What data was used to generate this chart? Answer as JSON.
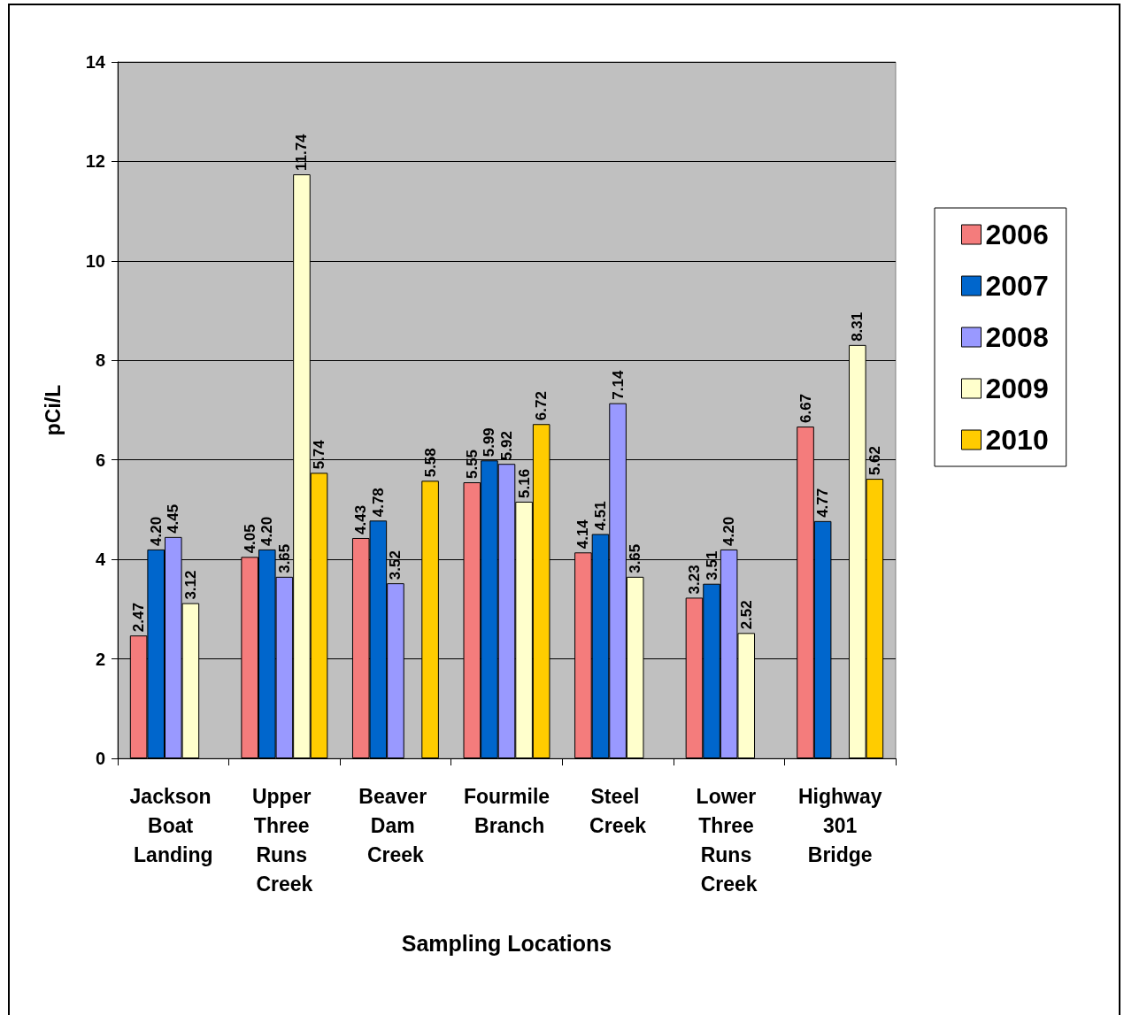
{
  "chart_data": {
    "type": "bar",
    "xlabel": "Sampling Locations",
    "ylabel": "pCi/L",
    "categories": [
      "Jackson Boat Landing",
      "Upper Three Runs Creek",
      "Beaver Dam Creek",
      "Fourmile Branch",
      "Steel Creek",
      "Lower Three Runs Creek",
      "Highway 301 Bridge"
    ],
    "series": [
      {
        "name": "2006",
        "color": "#f47c7c",
        "values": [
          2.47,
          4.05,
          4.43,
          5.55,
          4.14,
          3.23,
          6.67
        ],
        "value_labels": [
          "2.47",
          "4.05",
          "4.43",
          "5.55",
          "4.14",
          "3.23",
          "6.67"
        ]
      },
      {
        "name": "2007",
        "color": "#0066cc",
        "values": [
          4.2,
          4.2,
          4.78,
          5.99,
          4.51,
          3.51,
          4.77
        ],
        "value_labels": [
          "4.20",
          "4.20",
          "4.78",
          "5.99",
          "4.51",
          "3.51",
          "4.77"
        ]
      },
      {
        "name": "2008",
        "color": "#9999ff",
        "values": [
          4.45,
          3.65,
          3.52,
          5.92,
          7.14,
          4.2,
          null
        ],
        "value_labels": [
          "4.45",
          "3.65",
          "3.52",
          "5.92",
          "7.14",
          "4.20",
          null
        ]
      },
      {
        "name": "2009",
        "color": "#ffffcc",
        "values": [
          3.12,
          11.74,
          null,
          5.16,
          3.65,
          2.52,
          8.31
        ],
        "value_labels": [
          "3.12",
          "11.74",
          null,
          "5.16",
          "3.65",
          "2.52",
          "8.31"
        ]
      },
      {
        "name": "2010",
        "color": "#ffcc00",
        "values": [
          null,
          5.74,
          5.58,
          6.72,
          null,
          null,
          5.62
        ],
        "value_labels": [
          null,
          "5.74",
          "5.58",
          "6.72",
          null,
          null,
          "5.62"
        ]
      }
    ],
    "ylim": [
      0,
      14
    ],
    "yticks": [
      0,
      2,
      4,
      6,
      8,
      10,
      12,
      14
    ],
    "grid": "y",
    "legend": "right"
  }
}
